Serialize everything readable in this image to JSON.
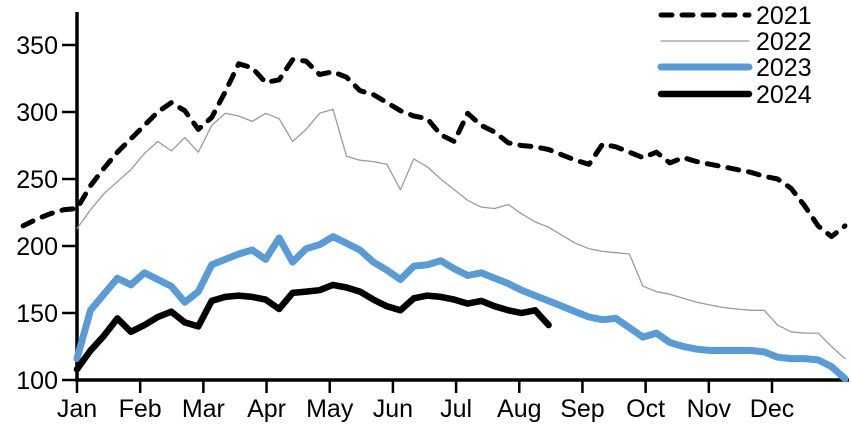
{
  "chart_data": {
    "type": "line",
    "title": "",
    "cadence": "weekly",
    "x_axis": {
      "tick_labels": [
        "Jan",
        "Feb",
        "Mar",
        "Apr",
        "May",
        "Jun",
        "Jul",
        "Aug",
        "Sep",
        "Oct",
        "Nov",
        "Dec"
      ]
    },
    "y_axis": {
      "ticks": [
        100,
        150,
        200,
        250,
        300,
        350
      ],
      "range": [
        100,
        375
      ]
    },
    "legend_position": "top-right",
    "grid": false,
    "series": [
      {
        "name": "2021",
        "style": "dashed",
        "color": "#000000",
        "width": 5,
        "offset_weeks": -4,
        "values": [
          215,
          220,
          224,
          227,
          228,
          245,
          258,
          270,
          280,
          290,
          300,
          307,
          301,
          287,
          296,
          315,
          336,
          333,
          322,
          324,
          339,
          338,
          328,
          330,
          326,
          316,
          313,
          307,
          301,
          297,
          295,
          283,
          278,
          299,
          290,
          285,
          277,
          275,
          274,
          272,
          268,
          264,
          261,
          276,
          274,
          270,
          266,
          270,
          262,
          266,
          263,
          261,
          259,
          257,
          255,
          252,
          250,
          243,
          230,
          215,
          207,
          215
        ]
      },
      {
        "name": "2022",
        "style": "solid",
        "color": "#9b9b9b",
        "width": 1.3,
        "offset_weeks": 0,
        "values": [
          213,
          227,
          239,
          248,
          257,
          269,
          278,
          271,
          281,
          270,
          290,
          299,
          297,
          293,
          299,
          295,
          278,
          287,
          299,
          302,
          267,
          264,
          263,
          261,
          242,
          265,
          259,
          250,
          242,
          234,
          229,
          228,
          231,
          224,
          218,
          214,
          208,
          202,
          198,
          196,
          195,
          194,
          170,
          166,
          164,
          161,
          158,
          156,
          154,
          153,
          152,
          152,
          141,
          136,
          135,
          135,
          125,
          116
        ]
      },
      {
        "name": "2023",
        "style": "solid",
        "color": "#5B9BD5",
        "width": 7,
        "offset_weeks": 0,
        "values": [
          116,
          152,
          164,
          176,
          171,
          180,
          175,
          170,
          158,
          166,
          186,
          190,
          194,
          197,
          190,
          206,
          188,
          198,
          201,
          207,
          202,
          197,
          188,
          182,
          175,
          185,
          186,
          189,
          183,
          178,
          180,
          176,
          172,
          167,
          163,
          159,
          155,
          151,
          147,
          145,
          146,
          139,
          132,
          135,
          128,
          125,
          123,
          122,
          122,
          122,
          122,
          121,
          117,
          116,
          116,
          115,
          110,
          101
        ]
      },
      {
        "name": "2024",
        "style": "solid",
        "color": "#000000",
        "width": 6.5,
        "offset_weeks": 0,
        "values": [
          108,
          122,
          133,
          146,
          136,
          141,
          147,
          151,
          143,
          140,
          159,
          162,
          163,
          162,
          160,
          153,
          165,
          166,
          167,
          171,
          169,
          166,
          160,
          155,
          152,
          161,
          163,
          162,
          160,
          157,
          159,
          155,
          152,
          150,
          152,
          141
        ]
      }
    ]
  }
}
